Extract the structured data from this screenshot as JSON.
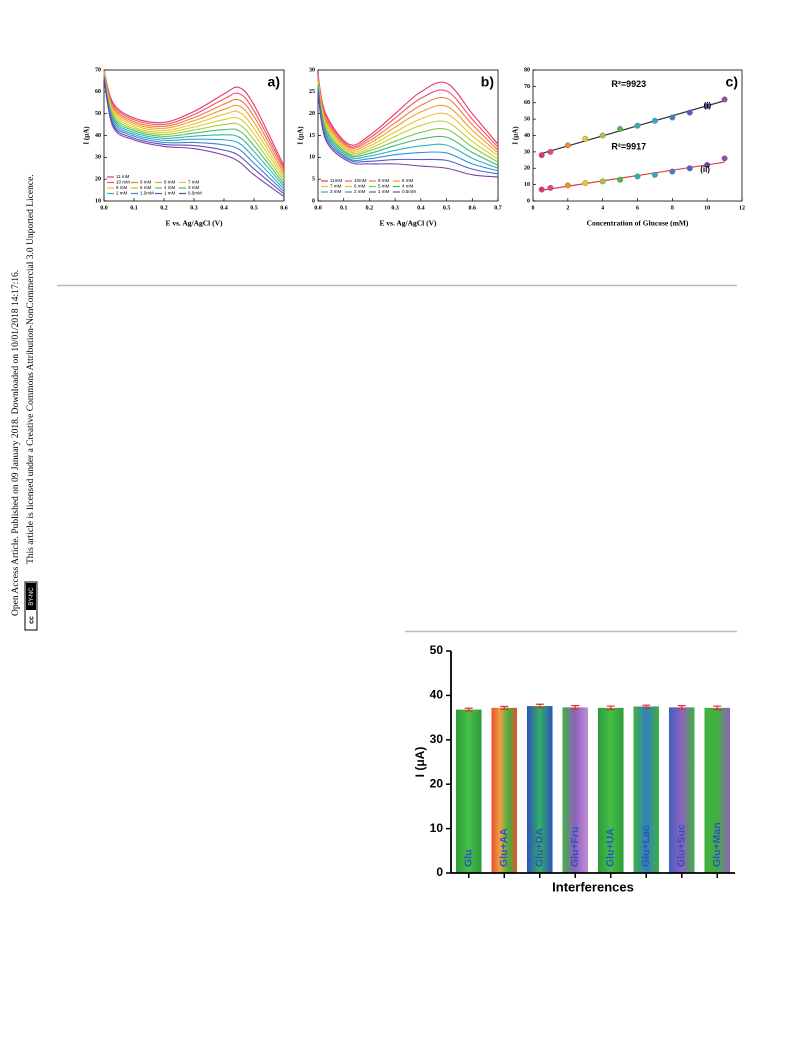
{
  "sidebar": {
    "line1": "Open Access Article. Published on 09 January 2018. Downloaded on 10/01/2018 14:17:16.",
    "line2": "This article is licensed under a Creative Commons Attribution-NonCommercial 3.0 Unported Licence.",
    "badge_left": "cc",
    "badge_right": "BY-NC"
  },
  "chart_data": [
    {
      "type": "line",
      "title": "a)",
      "xlabel": "E vs. Ag/AgCl (V)",
      "ylabel": "I (μA)",
      "x": [
        0,
        0.03,
        0.1,
        0.2,
        0.3,
        0.4,
        0.45,
        0.5,
        0.6
      ],
      "xlim": [
        0,
        0.6
      ],
      "xticks": [
        {
          "value": 0,
          "label": "0.0"
        },
        0.1,
        0.2,
        0.3,
        0.4,
        0.5,
        0.6
      ],
      "ylim": [
        10,
        70
      ],
      "yticks": [
        10,
        20,
        30,
        40,
        50,
        60,
        70
      ],
      "series": [
        {
          "name": "11 mM",
          "color": "#e8336a",
          "values": [
            70,
            55,
            48,
            46,
            51,
            59,
            62,
            54,
            26
          ]
        },
        {
          "name": "10 mM",
          "color": "#f0506a",
          "values": [
            69.7,
            54.1,
            47.2,
            45.1,
            49.6,
            56.7,
            59.2,
            51.3,
            24.8
          ]
        },
        {
          "name": "9 mM",
          "color": "#f07840",
          "values": [
            69.3,
            53.2,
            46.3,
            44.2,
            48.2,
            54.3,
            56.3,
            48.7,
            23.7
          ]
        },
        {
          "name": "8 mM",
          "color": "#f09a30",
          "values": [
            69,
            52.3,
            45.5,
            43.3,
            46.8,
            52,
            53.5,
            46,
            22.5
          ]
        },
        {
          "name": "7 mM",
          "color": "#f0c030",
          "values": [
            68.7,
            51.3,
            44.7,
            42.3,
            45.3,
            49.7,
            50.7,
            43.3,
            21.3
          ]
        },
        {
          "name": "6 mM",
          "color": "#d8d030",
          "values": [
            68.3,
            50.4,
            43.8,
            41.4,
            43.9,
            47.3,
            47.8,
            40.7,
            20.2
          ]
        },
        {
          "name": "5 mM",
          "color": "#a0d040",
          "values": [
            68,
            49.5,
            43,
            40.5,
            42.5,
            45,
            45,
            38,
            19
          ]
        },
        {
          "name": "4 mM",
          "color": "#50c060",
          "values": [
            67.7,
            48.6,
            42.2,
            39.6,
            41.1,
            42.7,
            42.2,
            35.3,
            17.8
          ]
        },
        {
          "name": "3 mM",
          "color": "#30b8a0",
          "values": [
            67.3,
            47.7,
            41.3,
            38.7,
            39.7,
            40.3,
            39.3,
            32.7,
            16.7
          ]
        },
        {
          "name": "2 mM",
          "color": "#30a8d8",
          "values": [
            67,
            46.8,
            40.5,
            37.8,
            38.3,
            38,
            36.5,
            30,
            15.5
          ]
        },
        {
          "name": "1.5mM",
          "color": "#4080d0",
          "values": [
            66.7,
            45.8,
            39.7,
            36.8,
            36.8,
            35.7,
            33.7,
            27.3,
            14.3
          ]
        },
        {
          "name": "1 mM",
          "color": "#6050c0",
          "values": [
            66.3,
            44.9,
            38.8,
            35.9,
            35.4,
            33.3,
            30.8,
            24.7,
            13.2
          ]
        },
        {
          "name": "0.5mM",
          "color": "#8040a0",
          "values": [
            66,
            44,
            38,
            35,
            34,
            31,
            28,
            22,
            12
          ]
        }
      ]
    },
    {
      "type": "line",
      "title": "b)",
      "xlabel": "E vs. Ag/AgCl (V)",
      "ylabel": "I (μA)",
      "x": [
        0,
        0.03,
        0.12,
        0.2,
        0.3,
        0.4,
        0.5,
        0.6,
        0.7
      ],
      "xlim": [
        0,
        0.7
      ],
      "xticks": [
        {
          "value": 0,
          "label": "0.0"
        },
        0.1,
        0.2,
        0.3,
        0.4,
        0.5,
        0.6,
        0.7
      ],
      "ylim": [
        0,
        30
      ],
      "yticks": [
        0,
        5,
        10,
        15,
        20,
        25,
        30
      ],
      "series": [
        {
          "name": "11mM",
          "color": "#e8336a",
          "values": [
            29,
            20,
            13,
            15,
            20,
            25,
            27,
            20,
            13
          ]
        },
        {
          "name": "10mM",
          "color": "#f0506a",
          "values": [
            28.6,
            19.5,
            12.6,
            14.4,
            19,
            23.5,
            25.2,
            18.7,
            12.3
          ]
        },
        {
          "name": "9 mM",
          "color": "#f07840",
          "values": [
            28.3,
            18.9,
            12.3,
            13.8,
            17.9,
            21.9,
            23.5,
            17.5,
            11.6
          ]
        },
        {
          "name": "8 mM",
          "color": "#f09a30",
          "values": [
            27.9,
            18.4,
            11.9,
            13.2,
            16.9,
            20.4,
            21.7,
            16.2,
            11
          ]
        },
        {
          "name": "7 mM",
          "color": "#f0c030",
          "values": [
            27.5,
            17.8,
            11.5,
            12.6,
            15.8,
            18.8,
            19.9,
            14.9,
            10.3
          ]
        },
        {
          "name": "6 mM",
          "color": "#c8d030",
          "values": [
            27.2,
            17.3,
            11.2,
            12,
            14.8,
            17.3,
            18.1,
            13.6,
            9.6
          ]
        },
        {
          "name": "5 mM",
          "color": "#80c848",
          "values": [
            26.8,
            16.7,
            10.8,
            11.5,
            13.7,
            15.7,
            16.4,
            12.4,
            8.9
          ]
        },
        {
          "name": "4 mM",
          "color": "#40b870",
          "values": [
            26.5,
            16.2,
            10.5,
            10.9,
            12.7,
            14.2,
            14.6,
            11.1,
            8.2
          ]
        },
        {
          "name": "3 mM",
          "color": "#30b0c0",
          "values": [
            26.1,
            15.6,
            10.1,
            10.3,
            11.6,
            12.6,
            12.8,
            9.8,
            7.5
          ]
        },
        {
          "name": "2 mM",
          "color": "#3090d8",
          "values": [
            25.7,
            15.1,
            9.7,
            9.7,
            10.6,
            11.1,
            11,
            8.5,
            6.9
          ]
        },
        {
          "name": "1 mM",
          "color": "#5060c8",
          "values": [
            25.4,
            14.5,
            9.4,
            9.1,
            9.5,
            9.5,
            9.3,
            7.3,
            6.2
          ]
        },
        {
          "name": "0.5mM",
          "color": "#8040a0",
          "values": [
            25,
            14,
            9,
            8.5,
            8.5,
            8,
            7.5,
            6,
            5.5
          ]
        }
      ]
    },
    {
      "type": "scatter",
      "title": "c)",
      "xlabel": "Concentration of Glucose (mM)",
      "ylabel": "I (μA)",
      "x": [
        0.5,
        1,
        2,
        3,
        4,
        5,
        6,
        7,
        8,
        9,
        10,
        11
      ],
      "xlim": [
        0,
        12
      ],
      "xticks": [
        0,
        2,
        4,
        6,
        8,
        10,
        12
      ],
      "ylim": [
        0,
        80
      ],
      "yticks": [
        0,
        10,
        20,
        30,
        40,
        50,
        60,
        70,
        80
      ],
      "point_colors": [
        "#e8336a",
        "#e84080",
        "#f09030",
        "#e8c830",
        "#a0c840",
        "#50b850",
        "#30b0a0",
        "#30a8d8",
        "#4080d0",
        "#5060c8",
        "#7040b0",
        "#9050b0"
      ],
      "annotations": [
        "R²=9923",
        "(i)",
        "R²=9917",
        "(ii)"
      ],
      "series": [
        {
          "name": "(i)",
          "color": "#333333",
          "values": [
            28,
            30,
            34,
            38,
            40,
            44,
            46,
            49,
            51,
            54,
            58,
            62
          ]
        },
        {
          "name": "(ii)",
          "color": "#e04040",
          "values": [
            7,
            8,
            9.5,
            11,
            12,
            13,
            15,
            16,
            18,
            20,
            22,
            26
          ]
        }
      ]
    },
    {
      "type": "bar",
      "xlabel": "Interferences",
      "ylabel": "I (μA)",
      "categories": [
        "Glu",
        "Glu+AA",
        "Glu+DA",
        "Glu+Fru",
        "Glu+UA",
        "Glu+Lac",
        "Glu+Suc",
        "Glu+Man"
      ],
      "values": [
        36.8,
        37.2,
        37.6,
        37.3,
        37.2,
        37.5,
        37.3,
        37.2
      ],
      "errors": [
        0.3,
        0.3,
        0.4,
        0.4,
        0.4,
        0.3,
        0.4,
        0.4
      ],
      "ylim": [
        0,
        50
      ],
      "yticks": [
        0,
        10,
        20,
        30,
        40,
        50
      ],
      "colors": [
        [
          "#2e9a3a",
          "#44c048",
          "#2e9a3a"
        ],
        [
          "#e85030",
          "#f0a040",
          "#40b040",
          "#e85030"
        ],
        [
          "#3050c0",
          "#30b060",
          "#3050c0"
        ],
        [
          "#40b040",
          "#9060c0",
          "#c090d8"
        ],
        [
          "#2e9a3a",
          "#44c048",
          "#2e9a3a"
        ],
        [
          "#40b040",
          "#3080c0",
          "#40b040"
        ],
        [
          "#4060c0",
          "#9060c0",
          "#40b040"
        ],
        [
          "#40b040",
          "#40b040",
          "#9060c0"
        ]
      ],
      "label_color": "#3050c0",
      "error_color": "#e03030"
    }
  ]
}
